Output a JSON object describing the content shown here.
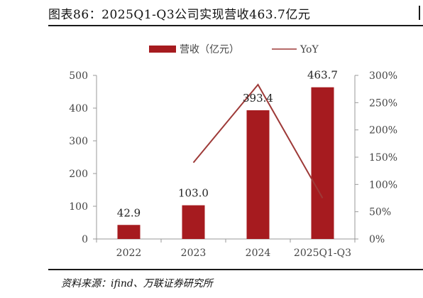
{
  "figure": {
    "title": "图表86：2025Q1-Q3公司实现营收463.7亿元",
    "source": "资料来源：ifind、万联证券研究所"
  },
  "colors": {
    "bar": "#A61B1F",
    "line": "#9E3A38",
    "axis": "#999999"
  },
  "chart_data": {
    "type": "bar",
    "title": "",
    "categories": [
      "2022",
      "2023",
      "2024",
      "2025Q1-Q3"
    ],
    "series": [
      {
        "name": "营收（亿元）",
        "type": "bar",
        "axis": "left",
        "values": [
          42.9,
          103.0,
          393.4,
          463.7
        ]
      },
      {
        "name": "YoY",
        "type": "line",
        "axis": "right",
        "values": [
          null,
          140,
          283,
          75
        ]
      }
    ],
    "data_labels": [
      "42.9",
      "103.0",
      "393.4",
      "463.7"
    ],
    "y_left": {
      "ylim": [
        0,
        500
      ],
      "ticks": [
        "0",
        "100",
        "200",
        "300",
        "400",
        "500"
      ]
    },
    "y_right": {
      "ylim": [
        0,
        300
      ],
      "unit": "%",
      "ticks": [
        "0%",
        "50%",
        "100%",
        "150%",
        "200%",
        "250%",
        "300%"
      ]
    },
    "legend": {
      "position": "top-center"
    },
    "grid": false
  }
}
